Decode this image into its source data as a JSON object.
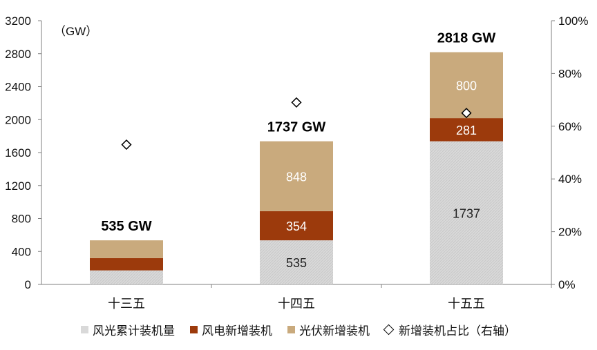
{
  "chart_data": {
    "type": "bar",
    "stacked": true,
    "unit_label": "（GW）",
    "categories": [
      "十三五",
      "十四五",
      "十五五"
    ],
    "series": [
      {
        "name": "风光累计装机量",
        "values": [
          170,
          535,
          1737
        ],
        "color": "#d9d9d9",
        "show_labels": [
          false,
          true,
          true
        ]
      },
      {
        "name": "风电新增装机",
        "values": [
          150,
          354,
          281
        ],
        "color": "#9c3a0c",
        "show_labels": [
          false,
          true,
          true
        ]
      },
      {
        "name": "光伏新增装机",
        "values": [
          215,
          848,
          800
        ],
        "color": "#c9aa7d",
        "show_labels": [
          false,
          true,
          true
        ]
      }
    ],
    "totals": [
      "535 GW",
      "1737 GW",
      "2818 GW"
    ],
    "secondary_series": {
      "name": "新增装机占比（右轴）",
      "values": [
        0.53,
        0.69,
        0.65
      ],
      "marker": "diamond"
    },
    "left_axis": {
      "min": 0,
      "max": 3200,
      "ticks": [
        "0",
        "400",
        "800",
        "1200",
        "1600",
        "2000",
        "2400",
        "2800",
        "3200"
      ]
    },
    "right_axis": {
      "min": 0,
      "max": 1,
      "ticks": [
        "0%",
        "20%",
        "40%",
        "60%",
        "80%",
        "100%"
      ]
    },
    "grid": false,
    "legend_position": "bottom"
  }
}
